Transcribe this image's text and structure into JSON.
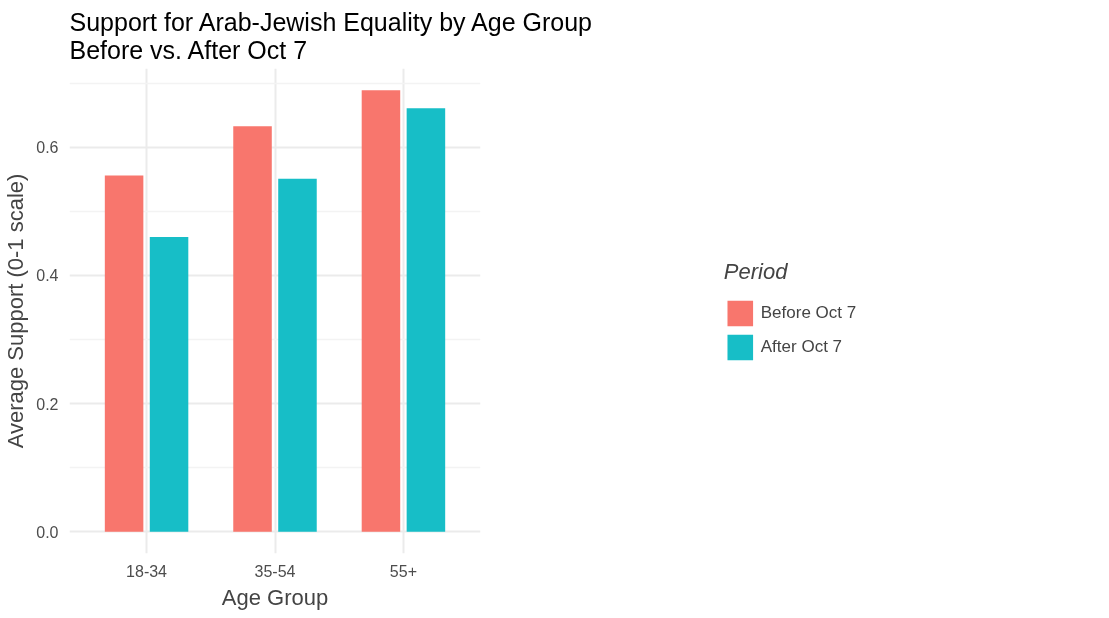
{
  "chart_data": {
    "type": "bar",
    "title": "Support for Arab-Jewish Equality by Age Group\nBefore vs. After Oct 7",
    "xlabel": "Age Group",
    "ylabel": "Average Support (0-1 scale)",
    "legend_title": "Period",
    "categories": [
      "18-34",
      "35-54",
      "55+"
    ],
    "series": [
      {
        "name": "Before Oct 7",
        "color": "#f8766d",
        "values": [
          0.556,
          0.633,
          0.689
        ]
      },
      {
        "name": "After Oct 7",
        "color": "#17bec7",
        "values": [
          0.46,
          0.551,
          0.661
        ]
      }
    ],
    "ylim": [
      -0.034,
      0.723
    ],
    "yticks": [
      {
        "value": 0,
        "label": "0.0"
      },
      {
        "value": 0.2,
        "label": "0.2"
      },
      {
        "value": 0.4,
        "label": "0.4"
      },
      {
        "value": 0.6,
        "label": "0.6"
      }
    ],
    "grid": true,
    "legend": "right"
  }
}
